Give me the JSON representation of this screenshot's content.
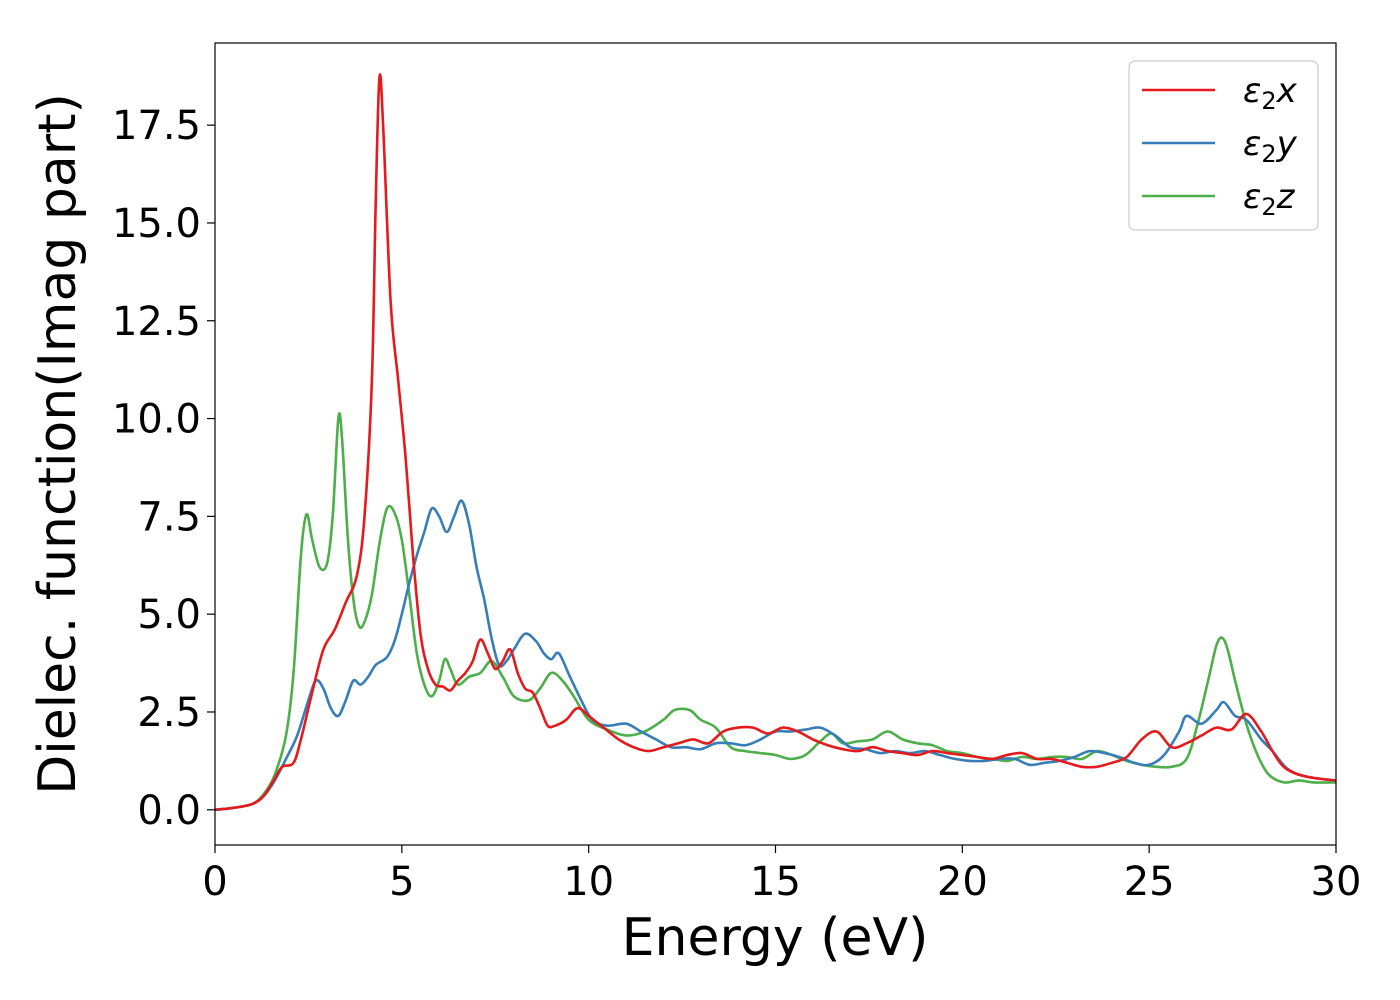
{
  "chart_data": {
    "type": "line",
    "title": "",
    "xlabel": "Energy (eV)",
    "ylabel": "Dielec. function(Imag part)",
    "xlim": [
      0,
      30
    ],
    "ylim": [
      -0.9,
      19.6
    ],
    "xticks": [
      0,
      5,
      10,
      15,
      20,
      25,
      30
    ],
    "xtick_labels": [
      "0",
      "5",
      "10",
      "15",
      "20",
      "25",
      "30"
    ],
    "yticks": [
      0.0,
      2.5,
      5.0,
      7.5,
      10.0,
      12.5,
      15.0,
      17.5
    ],
    "ytick_labels": [
      "0.0",
      "2.5",
      "5.0",
      "7.5",
      "10.0",
      "12.5",
      "15.0",
      "17.5"
    ],
    "grid": false,
    "legend_position": "top-right",
    "series": [
      {
        "name": "ε2x",
        "color": "#e41a1c",
        "points": [
          [
            0,
            0
          ],
          [
            0.5,
            0.05
          ],
          [
            1,
            0.15
          ],
          [
            1.3,
            0.35
          ],
          [
            1.6,
            0.8
          ],
          [
            1.8,
            1.1
          ],
          [
            2.1,
            1.2
          ],
          [
            2.3,
            1.8
          ],
          [
            2.6,
            3.0
          ],
          [
            2.9,
            4.1
          ],
          [
            3.2,
            4.6
          ],
          [
            3.5,
            5.3
          ],
          [
            3.8,
            6.0
          ],
          [
            4.0,
            7.5
          ],
          [
            4.2,
            11.0
          ],
          [
            4.3,
            15.5
          ],
          [
            4.4,
            18.7
          ],
          [
            4.5,
            17.5
          ],
          [
            4.7,
            13.0
          ],
          [
            4.9,
            11.0
          ],
          [
            5.1,
            9.0
          ],
          [
            5.3,
            6.5
          ],
          [
            5.5,
            4.5
          ],
          [
            5.7,
            3.6
          ],
          [
            5.9,
            3.2
          ],
          [
            6.1,
            3.15
          ],
          [
            6.3,
            3.05
          ],
          [
            6.5,
            3.3
          ],
          [
            6.7,
            3.5
          ],
          [
            6.9,
            3.8
          ],
          [
            7.1,
            4.35
          ],
          [
            7.3,
            4.0
          ],
          [
            7.5,
            3.6
          ],
          [
            7.7,
            3.8
          ],
          [
            7.9,
            4.1
          ],
          [
            8.1,
            3.5
          ],
          [
            8.3,
            3.1
          ],
          [
            8.5,
            3.0
          ],
          [
            8.7,
            2.6
          ],
          [
            8.9,
            2.15
          ],
          [
            9.1,
            2.15
          ],
          [
            9.4,
            2.3
          ],
          [
            9.7,
            2.6
          ],
          [
            10.0,
            2.4
          ],
          [
            10.4,
            2.1
          ],
          [
            10.8,
            1.8
          ],
          [
            11.2,
            1.6
          ],
          [
            11.6,
            1.5
          ],
          [
            12.0,
            1.6
          ],
          [
            12.4,
            1.7
          ],
          [
            12.8,
            1.8
          ],
          [
            13.2,
            1.7
          ],
          [
            13.6,
            2.0
          ],
          [
            14.0,
            2.1
          ],
          [
            14.4,
            2.1
          ],
          [
            14.8,
            1.95
          ],
          [
            15.2,
            2.1
          ],
          [
            15.6,
            2.0
          ],
          [
            16.0,
            1.8
          ],
          [
            16.4,
            1.65
          ],
          [
            16.8,
            1.55
          ],
          [
            17.2,
            1.5
          ],
          [
            17.6,
            1.6
          ],
          [
            18.0,
            1.5
          ],
          [
            18.4,
            1.45
          ],
          [
            18.8,
            1.4
          ],
          [
            19.2,
            1.5
          ],
          [
            19.6,
            1.45
          ],
          [
            20.0,
            1.4
          ],
          [
            20.4,
            1.35
          ],
          [
            20.8,
            1.3
          ],
          [
            21.2,
            1.4
          ],
          [
            21.6,
            1.45
          ],
          [
            22.0,
            1.3
          ],
          [
            22.4,
            1.3
          ],
          [
            22.8,
            1.2
          ],
          [
            23.2,
            1.1
          ],
          [
            23.6,
            1.1
          ],
          [
            24.0,
            1.2
          ],
          [
            24.4,
            1.35
          ],
          [
            24.8,
            1.8
          ],
          [
            25.2,
            2.0
          ],
          [
            25.6,
            1.6
          ],
          [
            26.0,
            1.7
          ],
          [
            26.4,
            1.9
          ],
          [
            26.8,
            2.1
          ],
          [
            27.2,
            2.05
          ],
          [
            27.6,
            2.45
          ],
          [
            28.0,
            2.0
          ],
          [
            28.3,
            1.5
          ],
          [
            28.6,
            1.1
          ],
          [
            29.0,
            0.9
          ],
          [
            29.5,
            0.8
          ],
          [
            30.0,
            0.75
          ]
        ]
      },
      {
        "name": "ε2y",
        "color": "#377eb8",
        "points": [
          [
            0,
            0
          ],
          [
            0.5,
            0.05
          ],
          [
            1,
            0.15
          ],
          [
            1.3,
            0.35
          ],
          [
            1.6,
            0.75
          ],
          [
            1.9,
            1.3
          ],
          [
            2.2,
            1.9
          ],
          [
            2.5,
            2.8
          ],
          [
            2.7,
            3.3
          ],
          [
            2.9,
            3.1
          ],
          [
            3.1,
            2.6
          ],
          [
            3.3,
            2.4
          ],
          [
            3.5,
            2.8
          ],
          [
            3.7,
            3.3
          ],
          [
            3.9,
            3.2
          ],
          [
            4.1,
            3.4
          ],
          [
            4.3,
            3.7
          ],
          [
            4.6,
            3.9
          ],
          [
            4.8,
            4.3
          ],
          [
            5.0,
            5.0
          ],
          [
            5.2,
            5.8
          ],
          [
            5.4,
            6.5
          ],
          [
            5.6,
            7.1
          ],
          [
            5.8,
            7.7
          ],
          [
            6.0,
            7.5
          ],
          [
            6.2,
            7.1
          ],
          [
            6.4,
            7.5
          ],
          [
            6.6,
            7.9
          ],
          [
            6.8,
            7.3
          ],
          [
            7.0,
            6.2
          ],
          [
            7.2,
            5.4
          ],
          [
            7.4,
            4.4
          ],
          [
            7.6,
            3.7
          ],
          [
            7.8,
            3.8
          ],
          [
            8.0,
            4.1
          ],
          [
            8.3,
            4.5
          ],
          [
            8.6,
            4.3
          ],
          [
            8.8,
            4.0
          ],
          [
            9.0,
            3.85
          ],
          [
            9.2,
            4.0
          ],
          [
            9.5,
            3.4
          ],
          [
            9.8,
            2.8
          ],
          [
            10.1,
            2.3
          ],
          [
            10.5,
            2.15
          ],
          [
            11.0,
            2.2
          ],
          [
            11.4,
            2.0
          ],
          [
            11.8,
            1.8
          ],
          [
            12.2,
            1.6
          ],
          [
            12.6,
            1.6
          ],
          [
            13.0,
            1.55
          ],
          [
            13.4,
            1.7
          ],
          [
            13.8,
            1.7
          ],
          [
            14.2,
            1.65
          ],
          [
            14.6,
            1.8
          ],
          [
            15.0,
            2.0
          ],
          [
            15.4,
            2.0
          ],
          [
            15.8,
            2.05
          ],
          [
            16.2,
            2.1
          ],
          [
            16.6,
            1.9
          ],
          [
            17.0,
            1.6
          ],
          [
            17.4,
            1.55
          ],
          [
            17.8,
            1.45
          ],
          [
            18.2,
            1.5
          ],
          [
            18.6,
            1.45
          ],
          [
            19.0,
            1.5
          ],
          [
            19.4,
            1.4
          ],
          [
            19.8,
            1.3
          ],
          [
            20.2,
            1.25
          ],
          [
            20.6,
            1.25
          ],
          [
            21.0,
            1.3
          ],
          [
            21.4,
            1.3
          ],
          [
            21.8,
            1.15
          ],
          [
            22.2,
            1.2
          ],
          [
            22.6,
            1.25
          ],
          [
            23.0,
            1.35
          ],
          [
            23.4,
            1.5
          ],
          [
            23.8,
            1.45
          ],
          [
            24.2,
            1.35
          ],
          [
            24.6,
            1.2
          ],
          [
            25.0,
            1.15
          ],
          [
            25.4,
            1.4
          ],
          [
            25.8,
            2.0
          ],
          [
            26.0,
            2.4
          ],
          [
            26.4,
            2.2
          ],
          [
            26.8,
            2.55
          ],
          [
            27.0,
            2.75
          ],
          [
            27.3,
            2.4
          ],
          [
            27.6,
            2.3
          ],
          [
            28.0,
            1.8
          ],
          [
            28.3,
            1.5
          ],
          [
            28.7,
            1.05
          ],
          [
            29.2,
            0.85
          ],
          [
            30.0,
            0.75
          ]
        ]
      },
      {
        "name": "ε2z",
        "color": "#4daf4a",
        "points": [
          [
            0,
            0
          ],
          [
            0.5,
            0.05
          ],
          [
            1,
            0.15
          ],
          [
            1.3,
            0.4
          ],
          [
            1.6,
            0.9
          ],
          [
            1.9,
            1.9
          ],
          [
            2.1,
            3.5
          ],
          [
            2.3,
            6.5
          ],
          [
            2.45,
            7.55
          ],
          [
            2.6,
            6.9
          ],
          [
            2.8,
            6.2
          ],
          [
            3.0,
            6.3
          ],
          [
            3.15,
            7.5
          ],
          [
            3.3,
            10.0
          ],
          [
            3.4,
            9.5
          ],
          [
            3.55,
            7.0
          ],
          [
            3.7,
            5.4
          ],
          [
            3.85,
            4.7
          ],
          [
            4.0,
            4.8
          ],
          [
            4.2,
            5.5
          ],
          [
            4.4,
            6.8
          ],
          [
            4.6,
            7.7
          ],
          [
            4.8,
            7.6
          ],
          [
            5.0,
            6.9
          ],
          [
            5.2,
            5.5
          ],
          [
            5.4,
            4.0
          ],
          [
            5.6,
            3.2
          ],
          [
            5.8,
            2.9
          ],
          [
            6.0,
            3.3
          ],
          [
            6.15,
            3.85
          ],
          [
            6.3,
            3.6
          ],
          [
            6.5,
            3.2
          ],
          [
            6.8,
            3.4
          ],
          [
            7.1,
            3.5
          ],
          [
            7.4,
            3.8
          ],
          [
            7.7,
            3.4
          ],
          [
            8.0,
            2.9
          ],
          [
            8.4,
            2.8
          ],
          [
            8.7,
            3.1
          ],
          [
            9.0,
            3.5
          ],
          [
            9.3,
            3.3
          ],
          [
            9.6,
            2.9
          ],
          [
            10.0,
            2.3
          ],
          [
            10.5,
            2.05
          ],
          [
            11.0,
            1.9
          ],
          [
            11.5,
            2.0
          ],
          [
            12.0,
            2.3
          ],
          [
            12.3,
            2.55
          ],
          [
            12.7,
            2.55
          ],
          [
            13.0,
            2.3
          ],
          [
            13.4,
            2.1
          ],
          [
            13.8,
            1.6
          ],
          [
            14.2,
            1.5
          ],
          [
            14.6,
            1.45
          ],
          [
            15.0,
            1.4
          ],
          [
            15.4,
            1.3
          ],
          [
            15.8,
            1.4
          ],
          [
            16.2,
            1.75
          ],
          [
            16.5,
            1.95
          ],
          [
            16.8,
            1.7
          ],
          [
            17.2,
            1.75
          ],
          [
            17.6,
            1.8
          ],
          [
            18.0,
            2.0
          ],
          [
            18.4,
            1.8
          ],
          [
            18.8,
            1.7
          ],
          [
            19.2,
            1.65
          ],
          [
            19.6,
            1.5
          ],
          [
            20.0,
            1.45
          ],
          [
            20.4,
            1.35
          ],
          [
            20.8,
            1.3
          ],
          [
            21.2,
            1.25
          ],
          [
            21.6,
            1.35
          ],
          [
            22.0,
            1.3
          ],
          [
            22.4,
            1.35
          ],
          [
            22.8,
            1.35
          ],
          [
            23.2,
            1.3
          ],
          [
            23.6,
            1.5
          ],
          [
            24.0,
            1.4
          ],
          [
            24.4,
            1.25
          ],
          [
            24.8,
            1.15
          ],
          [
            25.2,
            1.1
          ],
          [
            25.6,
            1.1
          ],
          [
            26.0,
            1.3
          ],
          [
            26.3,
            2.2
          ],
          [
            26.6,
            3.4
          ],
          [
            26.8,
            4.2
          ],
          [
            26.95,
            4.4
          ],
          [
            27.1,
            4.1
          ],
          [
            27.3,
            3.3
          ],
          [
            27.6,
            2.2
          ],
          [
            27.9,
            1.4
          ],
          [
            28.2,
            0.9
          ],
          [
            28.6,
            0.7
          ],
          [
            29.0,
            0.75
          ],
          [
            29.4,
            0.7
          ],
          [
            30.0,
            0.7
          ]
        ]
      }
    ]
  }
}
